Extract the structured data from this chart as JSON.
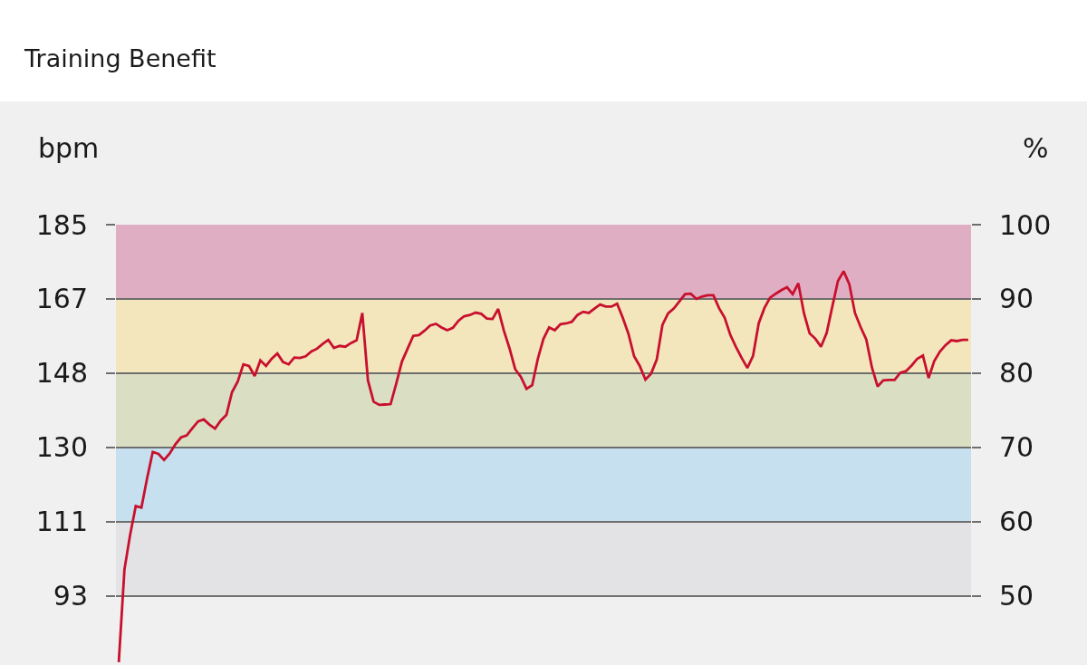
{
  "chart_data": {
    "type": "line",
    "title": "Training Benefit",
    "ylabel": "bpm",
    "y2label": "%",
    "categories": [
      null,
      null,
      null,
      null,
      null,
      null,
      null,
      null,
      null,
      null,
      null,
      null,
      null,
      null,
      null,
      null,
      null,
      null,
      null,
      null,
      null,
      null,
      null,
      null,
      null,
      null,
      null,
      null,
      null,
      null,
      null,
      null,
      null,
      null,
      null,
      null,
      null,
      null,
      null,
      null,
      null,
      null,
      null,
      null,
      null,
      null,
      null,
      null,
      null,
      null,
      null,
      null,
      null,
      null,
      null,
      null,
      null,
      null,
      null,
      null,
      null,
      null,
      null,
      null,
      null,
      null,
      null,
      null,
      null,
      null,
      null,
      null,
      null,
      null,
      null,
      null,
      null,
      null,
      null,
      null,
      null,
      null,
      null,
      null,
      null,
      null,
      null,
      null,
      null,
      null,
      null,
      null,
      null,
      null,
      null,
      null,
      null,
      null,
      null,
      null,
      null,
      null,
      null,
      null,
      null,
      null,
      null,
      null,
      null,
      null,
      null,
      null,
      null,
      null,
      null,
      null,
      null,
      null,
      null,
      null,
      null,
      null,
      null,
      null,
      null,
      null,
      null,
      null,
      null,
      null,
      null,
      null,
      null,
      null,
      null,
      null,
      null,
      null,
      null,
      null,
      null,
      null,
      null,
      null,
      null,
      null,
      null,
      null,
      null,
      null,
      null
    ],
    "series": [
      {
        "color": "#c8102e",
        "values": [
          76,
          99.1,
          107.7,
          114.9,
          114.5,
          121.8,
          128.4,
          127.9,
          126.4,
          128,
          130.3,
          132,
          132.5,
          134.3,
          136,
          136.5,
          135.2,
          134.2,
          136.2,
          137.6,
          143.3,
          145.9,
          150.2,
          149.8,
          147.3,
          151.2,
          149.8,
          151.6,
          152.9,
          150.8,
          150.2,
          151.9,
          151.8,
          152.2,
          153.4,
          154.1,
          155.3,
          156.3,
          154.3,
          154.8,
          154.6,
          155.5,
          156.2,
          163,
          146.2,
          140.9,
          140.1,
          140.2,
          140.3,
          145.4,
          150.9,
          154.1,
          157.3,
          157.5,
          158.6,
          159.9,
          160.3,
          159.4,
          158.7,
          159.3,
          161.1,
          162.2,
          162.5,
          163.1,
          162.8,
          161.6,
          161.5,
          164,
          158.6,
          154.2,
          149,
          147.1,
          144.1,
          145,
          151.6,
          156.6,
          159.4,
          158.7,
          160.2,
          160.4,
          160.8,
          162.5,
          163.3,
          163,
          164.1,
          165.1,
          164.6,
          164.6,
          165.3,
          161.8,
          157.8,
          152.2,
          149.8,
          146.4,
          147.9,
          151.4,
          160,
          162.9,
          164.1,
          165.9,
          167.7,
          167.8,
          166.5,
          167.1,
          167.4,
          167.4,
          164.2,
          161.8,
          157.5,
          154.5,
          151.8,
          149.3,
          152.3,
          160.4,
          164.2,
          166.8,
          167.8,
          168.7,
          169.4,
          167.7,
          170.4,
          162.9,
          157.9,
          156.6,
          154.6,
          158,
          164.6,
          171,
          173.4,
          170.2,
          163,
          159.5,
          156.4,
          149.4,
          144.7,
          146.2,
          146.3,
          146.3,
          148.1,
          148.5,
          149.9,
          151.6,
          152.4,
          146.8,
          151,
          153.4,
          155,
          156.2,
          156,
          156.3,
          156.3
        ]
      }
    ],
    "ylim": [
      75.3,
      185
    ],
    "yticks": [
      185,
      {
        "value": 166.5,
        "label": "167"
      },
      148,
      {
        "value": 129.5,
        "label": "130"
      },
      111,
      {
        "value": 92.5,
        "label": "93"
      }
    ],
    "y2lim": [
      40.7,
      100
    ],
    "y2ticks": [
      100,
      90,
      80,
      70,
      60,
      50
    ],
    "bands": [
      {
        "axis": "y2",
        "from": 90,
        "to": 100,
        "color": "#e0aec3"
      },
      {
        "axis": "y2",
        "from": 80,
        "to": 90,
        "color": "#f3e6bd"
      },
      {
        "axis": "y2",
        "from": 70,
        "to": 80,
        "color": "#dadfc3"
      },
      {
        "axis": "y2",
        "from": 60,
        "to": 70,
        "color": "#c6e0ef"
      },
      {
        "axis": "y2",
        "from": 50,
        "to": 60,
        "color": "#e3e3e5"
      }
    ],
    "grid": "y"
  }
}
